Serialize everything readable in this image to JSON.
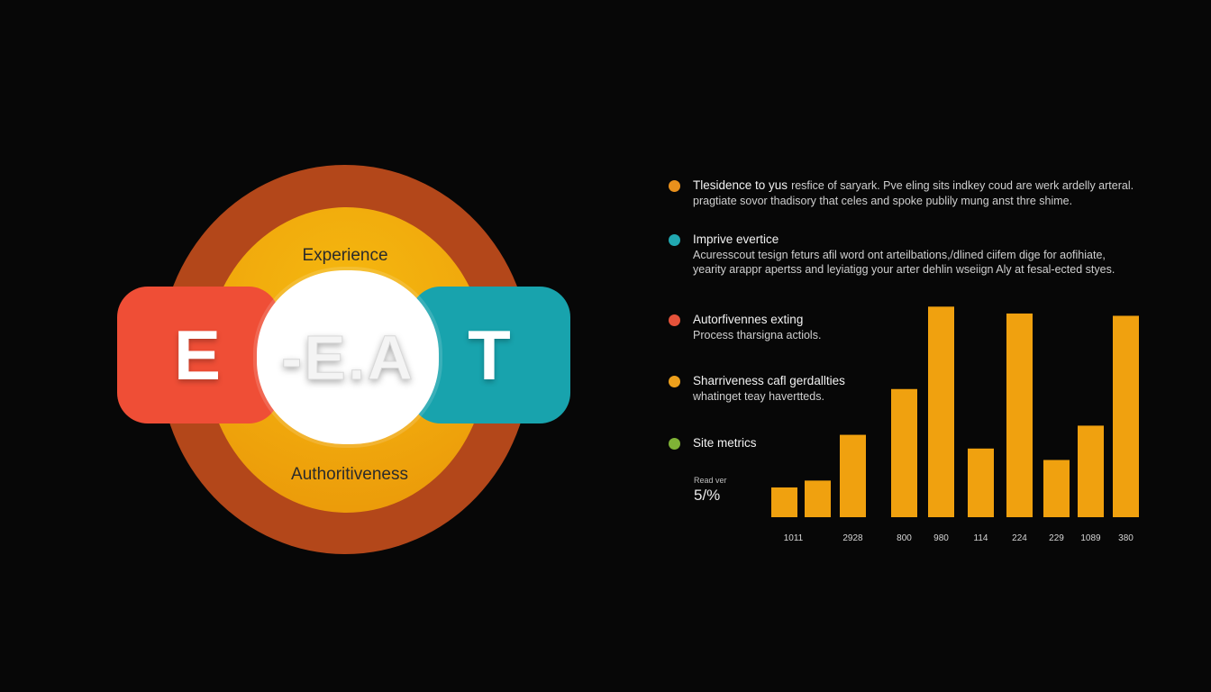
{
  "diagram": {
    "label_top": "Experience",
    "label_bottom": "Authoritiveness",
    "letter_left": "E",
    "letter_center": "-E.A",
    "letter_right": "T",
    "colors": {
      "outer_ring": "#b3471a",
      "inner_circle": "#f0a70c",
      "left_pill": "#ef4e36",
      "right_pill": "#18a3ad",
      "center": "#ffffff"
    }
  },
  "items": [
    {
      "title": "Tlesidence to yus",
      "body_line1": "resfice of saryark. Pve eling sits indkey coud are werk ardelly arteral.",
      "body_line2": "pragtiate sovor thadisory that celes and spoke publily mung anst thre shime.",
      "dot_color": "#e8901c"
    },
    {
      "title": "Imprive evertice",
      "body_line1": "Acuresscout tesign feturs afil word ont arteilbations,/dlined ciifem dige for aofihiate,",
      "body_line2": "yearity arappr apertss and leyiatigg your arter dehlin wseiign Aly at fesal-ected styes.",
      "dot_color": "#21a8b1"
    },
    {
      "title": "Autorfivennes exting",
      "body_line1": "Process tharsigna actiols.",
      "body_line2": "",
      "dot_color": "#e5523a"
    },
    {
      "title": "Sharriveness cafl gerdallties",
      "body_line1": "whatinget teay havertteds.",
      "body_line2": "",
      "dot_color": "#eda01c"
    },
    {
      "title": "Site metrics",
      "body_line1": "",
      "body_line2": "",
      "dot_color": "#7fb236"
    }
  ],
  "metric": {
    "label": "Read ver",
    "value": "5/%"
  },
  "chart_data": {
    "type": "bar",
    "categories": [
      "1011",
      "",
      "2928",
      "",
      "800",
      "980",
      "114",
      "224",
      "229",
      "1089",
      "380"
    ],
    "values": [
      13,
      16,
      36,
      42,
      56,
      92,
      30,
      89,
      25,
      40,
      88
    ],
    "ylim": [
      0,
      100
    ],
    "grid": false,
    "color": "#f0a10f"
  }
}
